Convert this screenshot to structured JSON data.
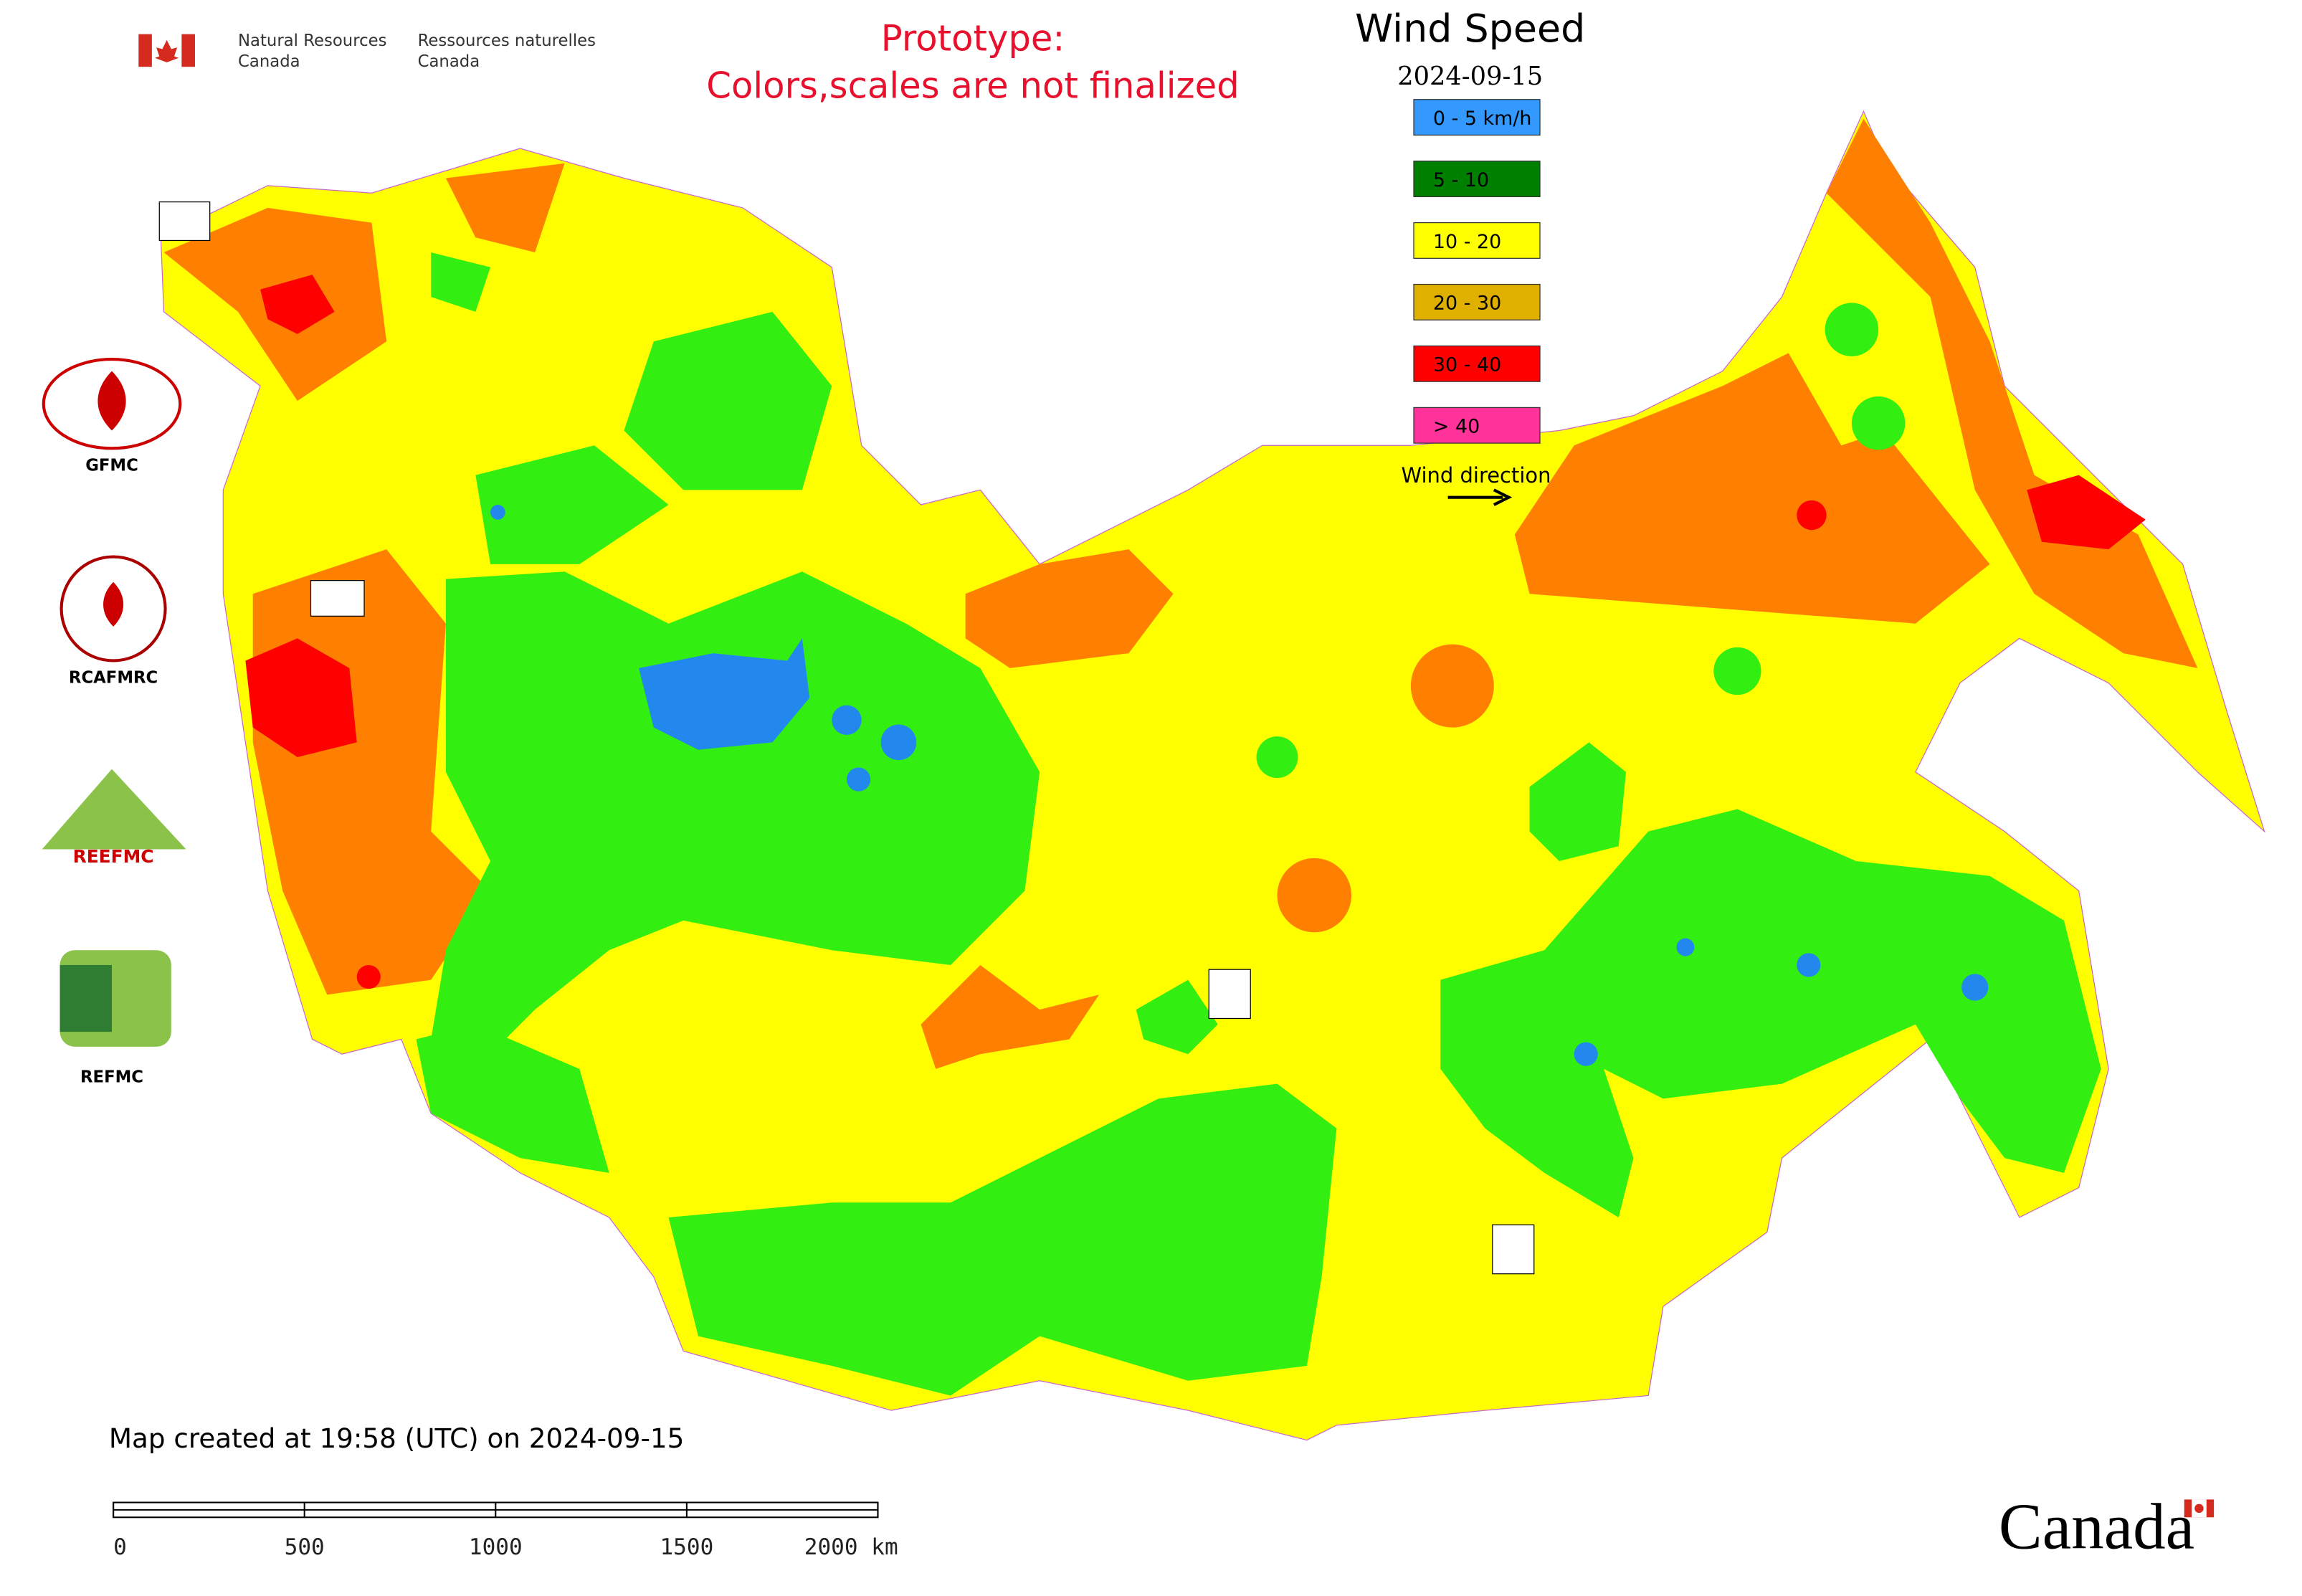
{
  "header": {
    "agency_en_1": "Natural Resources",
    "agency_en_2": "Canada",
    "agency_fr_1": "Ressources naturelles",
    "agency_fr_2": "Canada",
    "notice_1": "Prototype:",
    "notice_2": "Colors,scales are not finalized"
  },
  "legend": {
    "title": "Wind Speed",
    "date": "2024-09-15",
    "items": [
      {
        "label": "0 - 5 km/h",
        "color": "#3399ff"
      },
      {
        "label": "5 - 10",
        "color": "#008000"
      },
      {
        "label": "10 - 20",
        "color": "#ffff00"
      },
      {
        "label": "20 - 30",
        "color": "#e0b000"
      },
      {
        "label": "30 - 40",
        "color": "#ff0000"
      },
      {
        "label": "> 40",
        "color": "#ff3399"
      }
    ],
    "direction_label": "Wind direction"
  },
  "logos": [
    "GFMC",
    "RCAFMRC",
    "REEFMC",
    "REFMC"
  ],
  "footer": {
    "created": "Map created at 19:58 (UTC) on 2024-09-15",
    "wordmark": "Canada"
  },
  "scale_bar": {
    "labels": [
      "0",
      "500",
      "1000",
      "1500",
      "2000 km"
    ]
  }
}
